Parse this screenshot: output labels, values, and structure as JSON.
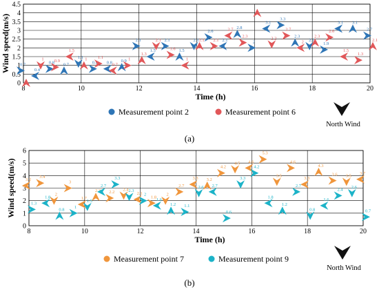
{
  "figure": {
    "caption_a": "(a)",
    "caption_b": "(b)"
  },
  "chart_data": [
    {
      "type": "scatter",
      "xlabel": "Time (h)",
      "ylabel": "Wind speed(m/s)",
      "xlim": [
        8,
        20
      ],
      "ylim": [
        0,
        4.5
      ],
      "xticks": [
        8,
        10,
        12,
        14,
        16,
        18,
        20
      ],
      "yticks": [
        0,
        0.5,
        1,
        1.5,
        2,
        2.5,
        3,
        3.5,
        4,
        4.5
      ],
      "legend_position": "bottom",
      "marker": "wind-direction-arrow",
      "series": [
        {
          "name": "Measurement point 2",
          "color": "#2e75b6",
          "x": [
            8,
            8.5,
            9,
            9.5,
            10,
            10.5,
            11,
            11.5,
            12,
            12.5,
            13,
            13.5,
            14,
            14.5,
            15,
            15.5,
            16,
            16.5,
            17,
            17.5,
            18,
            18.5,
            19,
            19.5,
            20
          ],
          "y": [
            0.7,
            0.4,
            0.8,
            0.7,
            1.1,
            0.8,
            0.8,
            0.9,
            2.1,
            1.5,
            2.1,
            1.5,
            2.1,
            2.6,
            2.1,
            2.8,
            2,
            3.1,
            3.3,
            2.3,
            2.1,
            1.9,
            3.1,
            3.1,
            2.7
          ],
          "labels": [
            "0.7",
            "0.4",
            "0.8",
            "0.7",
            "1.1",
            "0.8",
            "0.8",
            "0.9",
            "2.1",
            "1.5",
            "2.1",
            "1.5",
            "2.1",
            "2.6",
            "2.1",
            "2.8",
            "2",
            "3.1",
            "3.3",
            "2.3",
            "2.1",
            "1.9",
            "3.1",
            "3.1",
            "2.7"
          ]
        },
        {
          "name": "Measurement point 6",
          "color": "#e15759",
          "x": [
            8,
            8.5,
            9,
            9.5,
            10,
            10.5,
            11,
            11.5,
            12,
            12.5,
            13,
            13.5,
            14,
            14.5,
            15,
            15.5,
            16,
            16.5,
            17,
            17.5,
            18,
            18.5,
            19,
            19.5,
            20
          ],
          "y": [
            0,
            1,
            0.9,
            1.5,
            1,
            1.1,
            0.7,
            1,
            1.3,
            2.1,
            1.6,
            1,
            2.1,
            2.1,
            2.7,
            2.3,
            4,
            2.2,
            2.7,
            2,
            2.3,
            2.6,
            1.5,
            1.3,
            2.1
          ],
          "labels": [
            "",
            "1",
            "0.9",
            "1.5",
            "1",
            "1.1",
            "0.7",
            "1",
            "1.3",
            "2.1",
            "1.6",
            "1",
            "2.1",
            "2.1",
            "2.7",
            "2.3",
            "",
            "2.2",
            "2.7",
            "2",
            "2.3",
            "2.6",
            "1.5",
            "1.3",
            "2.1"
          ]
        }
      ]
    },
    {
      "type": "scatter",
      "xlabel": "Time (h)",
      "ylabel": "Wind speed(m/s)",
      "xlim": [
        8,
        20
      ],
      "ylim": [
        0,
        6
      ],
      "xticks": [
        8,
        10,
        12,
        14,
        16,
        18,
        20
      ],
      "yticks": [
        0,
        1,
        2,
        3,
        4,
        5,
        6
      ],
      "legend_position": "bottom",
      "marker": "wind-direction-arrow",
      "series": [
        {
          "name": "Measurement point 7",
          "color": "#f0963c",
          "x": [
            8,
            8.5,
            9,
            9.5,
            10,
            10.5,
            11,
            11.5,
            12,
            12.5,
            13,
            13.5,
            14,
            14.5,
            15,
            15.5,
            16,
            16.5,
            17,
            17.5,
            18,
            18.5,
            19,
            19.5,
            20
          ],
          "y": [
            3.2,
            3.4,
            2,
            3,
            1.7,
            2.3,
            2.2,
            2.4,
            2.1,
            1.8,
            2,
            2.7,
            3.3,
            3.2,
            4.2,
            4.5,
            4.6,
            5.3,
            3.5,
            4.6,
            3.3,
            4.3,
            3.6,
            3.5,
            3.7
          ],
          "labels": [
            "3.2",
            "3.4",
            "2",
            "3",
            "1.7",
            "2.3",
            "2.2",
            "2.4",
            "2.1",
            "1.8",
            "2",
            "2.7",
            "3.3",
            "3.2",
            "4.2",
            "4.5",
            "4.6",
            "5.3",
            "3.5",
            "4.6",
            "3.3",
            "4.3",
            "3.6",
            "3.5",
            "3.7"
          ]
        },
        {
          "name": "Measurement point 9",
          "color": "#1cb3c8",
          "x": [
            8,
            8.5,
            9,
            9.5,
            10,
            10.5,
            11,
            11.5,
            12,
            12.5,
            13,
            13.5,
            14,
            14.5,
            15,
            15.5,
            16,
            16.5,
            17,
            17.5,
            18,
            18.5,
            19,
            19.5,
            20
          ],
          "y": [
            1.3,
            1.8,
            0.8,
            1,
            1.5,
            2.7,
            3.3,
            2.3,
            2,
            1.6,
            1.2,
            1.1,
            2.6,
            2.7,
            0.6,
            3.3,
            4.2,
            1.8,
            1.2,
            2.7,
            0.8,
            1.6,
            2.4,
            2.6,
            0.7
          ],
          "labels": [
            "1.3",
            "1.8",
            "0.8",
            "1",
            "1.5",
            "2.7",
            "3.3",
            "2.3",
            "2",
            "1.6",
            "1.2",
            "1.1",
            "2.6",
            "2.7",
            "0.6",
            "3.3",
            "4.2",
            "1.8",
            "1.2",
            "2.7",
            "0.8",
            "1.6",
            "2.4",
            "2.6",
            "0.7"
          ]
        }
      ]
    }
  ],
  "north_wind": {
    "label": "North Wind",
    "icon": "north-wind-arrow-icon"
  }
}
